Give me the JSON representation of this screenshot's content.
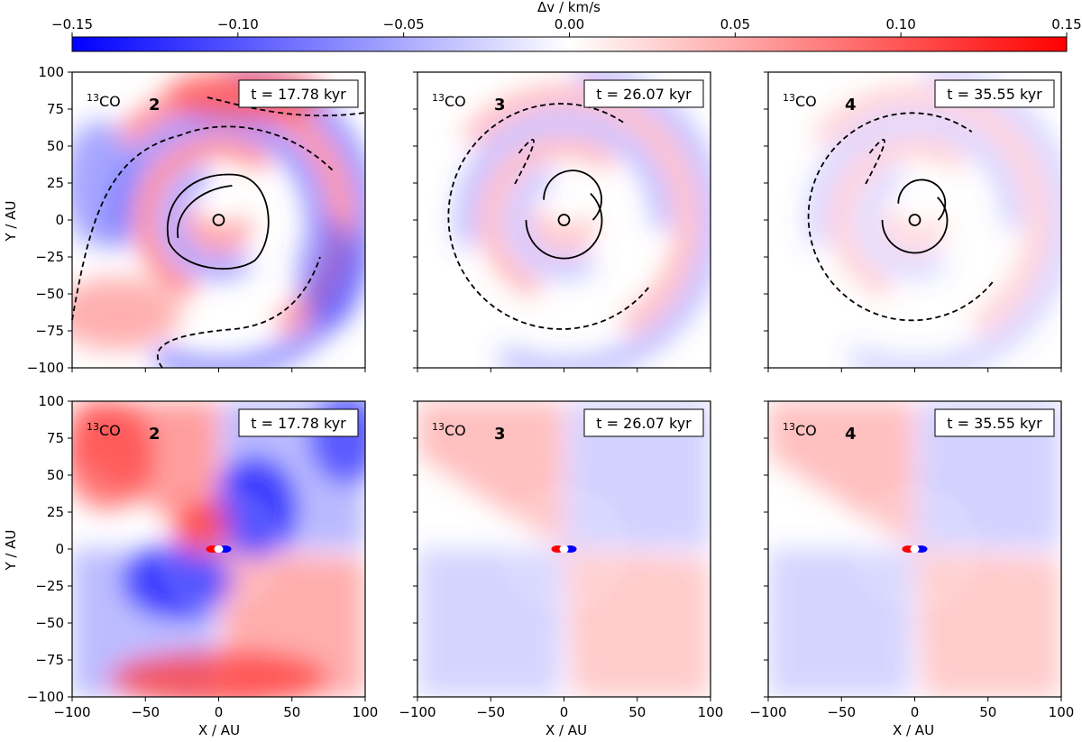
{
  "chart_data": {
    "type": "heatmap",
    "title": "",
    "colorbar": {
      "label": "Δv / km/s",
      "range": [
        -0.15,
        0.15
      ],
      "ticks": [
        -0.15,
        -0.1,
        -0.05,
        0.0,
        0.05,
        0.1,
        0.15
      ],
      "tick_labels": [
        "−0.15",
        "−0.10",
        "−0.05",
        "0.00",
        "0.05",
        "0.10",
        "0.15"
      ],
      "cmap": "bwr",
      "colors": {
        "low": "#0000ff",
        "mid": "#ffffff",
        "high": "#ff0000"
      }
    },
    "xlabel": "X / AU",
    "ylabel": "Y / AU",
    "xlim": [
      -100,
      100
    ],
    "ylim": [
      -100,
      100
    ],
    "ticks": [
      -100,
      -50,
      0,
      50,
      100
    ],
    "ytick_labels": [
      "100",
      "75",
      "50",
      "25",
      "0",
      "−25",
      "−50",
      "−75",
      "−100"
    ],
    "xtick_labels": [
      "−100",
      "−50",
      "0",
      "50",
      "100"
    ],
    "ytick_values": [
      100,
      75,
      50,
      25,
      0,
      -25,
      -50,
      -75,
      -100
    ],
    "panels": [
      {
        "row": 1,
        "col": 1,
        "species": "CO",
        "isotope": "13",
        "label": "2",
        "time": "t = 17.78 kyr",
        "contours": true,
        "pattern": "spiral-mixed"
      },
      {
        "row": 1,
        "col": 2,
        "species": "CO",
        "isotope": "13",
        "label": "3",
        "time": "t = 26.07 kyr",
        "contours": true,
        "pattern": "spiral-weak"
      },
      {
        "row": 1,
        "col": 3,
        "species": "CO",
        "isotope": "13",
        "label": "4",
        "time": "t = 35.55 kyr",
        "contours": true,
        "pattern": "spiral-faint"
      },
      {
        "row": 2,
        "col": 1,
        "species": "CO",
        "isotope": "13",
        "label": "2",
        "time": "t = 17.78 kyr",
        "contours": false,
        "pattern": "quadrupole-strong"
      },
      {
        "row": 2,
        "col": 2,
        "species": "CO",
        "isotope": "13",
        "label": "3",
        "time": "t = 26.07 kyr",
        "contours": false,
        "pattern": "quadrupole"
      },
      {
        "row": 2,
        "col": 3,
        "species": "CO",
        "isotope": "13",
        "label": "4",
        "time": "t = 35.55 kyr",
        "contours": false,
        "pattern": "quadrupole"
      }
    ]
  }
}
